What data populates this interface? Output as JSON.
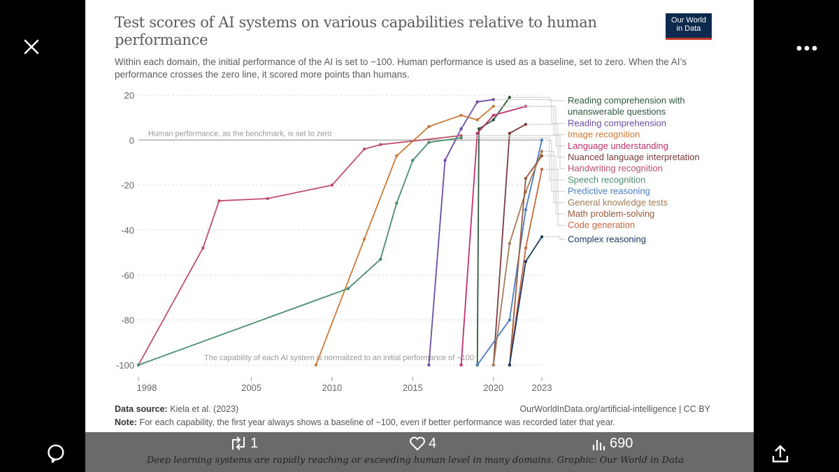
{
  "viewer": {
    "close_icon": "close-icon",
    "more_icon": "more-horizontal-icon",
    "reply_icon": "reply-icon",
    "share_icon": "share-icon",
    "retweet_count": "1",
    "like_count": "4",
    "view_count": "690",
    "caption": "Deep learning systems are rapidly reaching or exceeding human level in many domains. Graphic: Our World in Data"
  },
  "header": {
    "title": "Test scores of AI systems on various capabilities relative to human performance",
    "subtitle": "Within each domain, the initial performance of the AI is set to −100. Human performance is used as a baseline, set to zero. When the AI’s performance crosses the zero line, it scored more points than humans.",
    "logo_line1": "Our World",
    "logo_line2": "in Data"
  },
  "footer": {
    "source_label": "Data source:",
    "source_text": "Kiela et al. (2023)",
    "url_text": "OurWorldInData.org/artificial-intelligence | CC BY",
    "note_label": "Note:",
    "note_text": "For each capability, the first year always shows a baseline of −100, even if better performance was recorded later that year."
  },
  "chart_data": {
    "type": "line",
    "title": "Test scores of AI systems on various capabilities relative to human performance",
    "xlabel": "",
    "ylabel": "",
    "xlim": [
      1998,
      2023
    ],
    "ylim": [
      -100,
      20
    ],
    "x_ticks": [
      1998,
      2005,
      2010,
      2015,
      2020,
      2023
    ],
    "y_ticks": [
      20,
      0,
      -20,
      -40,
      -60,
      -80,
      -100
    ],
    "grid": true,
    "legend_position": "right",
    "annotations": [
      {
        "text": "Human performance, as the benchmark, is set to zero",
        "y": 0
      },
      {
        "text": "The capability of each AI system is normalized to an initial performance of −100",
        "y": -100
      }
    ],
    "series": [
      {
        "name": "Reading comprehension with unanswerable questions",
        "color": "#2f5a3a",
        "points": [
          [
            2019,
            -100
          ],
          [
            2019.1,
            5
          ],
          [
            2020,
            9
          ],
          [
            2021,
            19
          ]
        ]
      },
      {
        "name": "Reading comprehension",
        "color": "#6f4ba8",
        "points": [
          [
            2016,
            -100
          ],
          [
            2017,
            -9
          ],
          [
            2018,
            5
          ],
          [
            2019,
            17
          ],
          [
            2020,
            18
          ]
        ]
      },
      {
        "name": "Image recognition",
        "color": "#cc7a3a",
        "points": [
          [
            2009,
            -100
          ],
          [
            2012,
            -44
          ],
          [
            2014,
            -7
          ],
          [
            2016,
            6
          ],
          [
            2018,
            11
          ],
          [
            2019,
            9
          ],
          [
            2020,
            15
          ]
        ]
      },
      {
        "name": "Language understanding",
        "color": "#c2306f",
        "points": [
          [
            2018,
            -100
          ],
          [
            2019,
            3
          ],
          [
            2020,
            11
          ],
          [
            2022,
            15
          ]
        ]
      },
      {
        "name": "Nuanced language interpretation",
        "color": "#7b3b3e",
        "points": [
          [
            2020,
            -100
          ],
          [
            2021,
            3
          ],
          [
            2022,
            7
          ]
        ]
      },
      {
        "name": "Handwriting recognition",
        "color": "#c0506a",
        "points": [
          [
            1998,
            -100
          ],
          [
            2002,
            -48
          ],
          [
            2003,
            -27
          ],
          [
            2006,
            -26
          ],
          [
            2010,
            -20
          ],
          [
            2012,
            -4
          ],
          [
            2013,
            -2
          ],
          [
            2018,
            2
          ]
        ]
      },
      {
        "name": "Speech recognition",
        "color": "#4b8e6c",
        "points": [
          [
            1998,
            -100
          ],
          [
            2011,
            -66
          ],
          [
            2013,
            -53
          ],
          [
            2014,
            -28
          ],
          [
            2015,
            -9
          ],
          [
            2016,
            -1
          ],
          [
            2018,
            1
          ]
        ]
      },
      {
        "name": "Predictive reasoning",
        "color": "#4a7cc2",
        "points": [
          [
            2019,
            -100
          ],
          [
            2021,
            -80
          ],
          [
            2022,
            -31
          ],
          [
            2023,
            0
          ]
        ]
      },
      {
        "name": "General knowledge tests",
        "color": "#a57c5a",
        "points": [
          [
            2020,
            -100
          ],
          [
            2021,
            -46
          ],
          [
            2022,
            -23
          ],
          [
            2023,
            -5
          ]
        ]
      },
      {
        "name": "Math problem-solving",
        "color": "#9a5b3e",
        "points": [
          [
            2021,
            -100
          ],
          [
            2022,
            -17
          ],
          [
            2023,
            -7
          ]
        ]
      },
      {
        "name": "Code generation",
        "color": "#c9673f",
        "points": [
          [
            2021,
            -100
          ],
          [
            2022,
            -48
          ],
          [
            2023,
            -13
          ]
        ]
      },
      {
        "name": "Complex reasoning",
        "color": "#1d3a66",
        "points": [
          [
            2021,
            -100
          ],
          [
            2022,
            -54
          ],
          [
            2023,
            -43
          ]
        ]
      }
    ]
  }
}
